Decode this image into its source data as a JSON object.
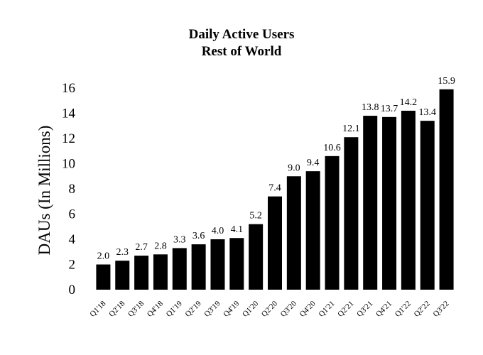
{
  "chart_data": {
    "type": "bar",
    "title": "Daily Active Users",
    "subtitle": "Rest of World",
    "xlabel": "",
    "ylabel": "DAUs (In Millions)",
    "ylim": [
      0,
      16
    ],
    "yticks": [
      0,
      2,
      4,
      6,
      8,
      10,
      12,
      14,
      16
    ],
    "grid": false,
    "bar_color": "#000000",
    "categories": [
      "Q1'18",
      "Q2'18",
      "Q3'18",
      "Q4'18",
      "Q1'19",
      "Q2'19",
      "Q3'19",
      "Q4'19",
      "Q1'20",
      "Q2'20",
      "Q3'20",
      "Q4'20",
      "Q1'21",
      "Q2'21",
      "Q3'21",
      "Q4'21",
      "Q1'22",
      "Q2'22",
      "Q3'22"
    ],
    "values": [
      2.0,
      2.3,
      2.7,
      2.8,
      3.3,
      3.6,
      4.0,
      4.1,
      5.2,
      7.4,
      9.0,
      9.4,
      10.6,
      12.1,
      13.8,
      13.7,
      14.2,
      13.4,
      15.9
    ],
    "value_labels": [
      "2.0",
      "2.3",
      "2.7",
      "2.8",
      "3.3",
      "3.6",
      "4.0",
      "4.1",
      "5.2",
      "7.4",
      "9.0",
      "9.4",
      "10.6",
      "12.1",
      "13.8",
      "13.7",
      "14.2",
      "13.4",
      "15.9"
    ]
  }
}
